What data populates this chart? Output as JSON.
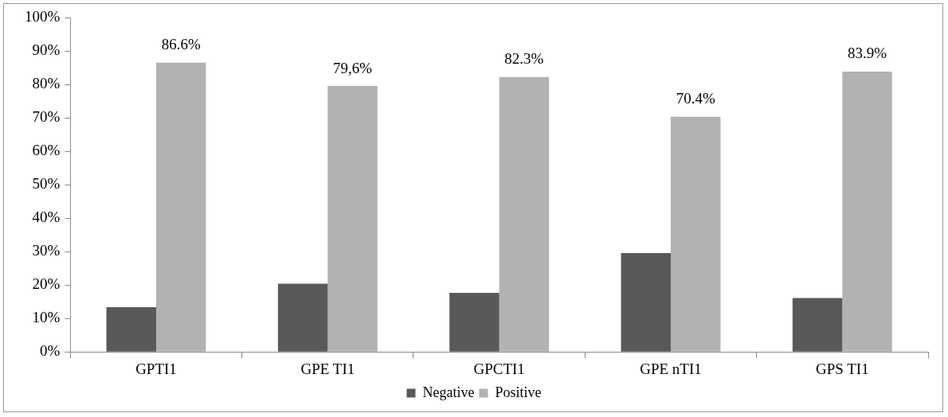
{
  "chart_data": {
    "type": "bar",
    "categories": [
      "GPTI1",
      "GPE TI1",
      "GPCTI1",
      "GPE nTI1",
      "GPS TI1"
    ],
    "series": [
      {
        "name": "Negative",
        "color": "#595959",
        "values": [
          13.4,
          20.4,
          17.7,
          29.6,
          16.1
        ]
      },
      {
        "name": "Positive",
        "color": "#b2b2b2",
        "values": [
          86.6,
          79.6,
          82.3,
          70.4,
          83.9
        ],
        "value_labels": [
          "86.6%",
          "79,6%",
          "82.3%",
          "70.4%",
          "83.9%"
        ]
      }
    ],
    "ylim": [
      0,
      100
    ],
    "yticks": [
      {
        "value": 0,
        "label": "0%"
      },
      {
        "value": 10,
        "label": "10%"
      },
      {
        "value": 20,
        "label": "20%"
      },
      {
        "value": 30,
        "label": "30%"
      },
      {
        "value": 40,
        "label": "40%"
      },
      {
        "value": 50,
        "label": "50%"
      },
      {
        "value": 60,
        "label": "60%"
      },
      {
        "value": 70,
        "label": "70%"
      },
      {
        "value": 80,
        "label": "80%"
      },
      {
        "value": 90,
        "label": "90%"
      },
      {
        "value": 100,
        "label": "100%"
      }
    ],
    "grid": false,
    "legend": "bottom"
  }
}
